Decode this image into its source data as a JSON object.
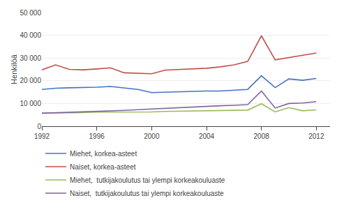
{
  "chart_data": {
    "type": "line",
    "x": [
      1992,
      1993,
      1994,
      1995,
      1996,
      1997,
      1998,
      1999,
      2000,
      2001,
      2002,
      2003,
      2004,
      2005,
      2006,
      2007,
      2008,
      2009,
      2010,
      2011,
      2012
    ],
    "series": [
      {
        "name": "Miehet, korkea-asteet",
        "color": "#4472C4",
        "values": [
          16200,
          16700,
          16900,
          17000,
          17200,
          17500,
          16800,
          16200,
          14800,
          15000,
          15300,
          15300,
          15500,
          15500,
          15800,
          16200,
          22200,
          17000,
          20800,
          20200,
          21000
        ]
      },
      {
        "name": "Naiset, korkea-asteet",
        "color": "#C0504D",
        "values": [
          24800,
          27000,
          25000,
          24800,
          25200,
          25700,
          23500,
          23200,
          23100,
          24700,
          24900,
          25200,
          25500,
          26100,
          27000,
          28500,
          39800,
          29200,
          30200,
          31000,
          32200
        ]
      },
      {
        "name": "Miehet,  tutkijakoulutus tai ylempi korkeakouluaste",
        "color": "#9BBB59",
        "values": [
          5800,
          5800,
          5800,
          6000,
          6200,
          6200,
          6300,
          6300,
          6300,
          6500,
          6600,
          6700,
          6900,
          7100,
          7100,
          7100,
          9900,
          6300,
          8200,
          6800,
          7200
        ]
      },
      {
        "name": "Naiset,  tutkijakoulutus tai ylempi korkeakouluaste",
        "color": "#8064A2",
        "values": [
          5700,
          5900,
          6000,
          6200,
          6500,
          6800,
          7000,
          7300,
          7600,
          8000,
          8200,
          8500,
          8800,
          9000,
          9200,
          9500,
          15500,
          8000,
          10000,
          10200,
          10800
        ]
      }
    ],
    "ylabel": "Henkilöä",
    "xlim": [
      1992,
      2013
    ],
    "xticks": [
      1992,
      1996,
      2000,
      2004,
      2008,
      2012
    ],
    "ylim": [
      0,
      50000
    ],
    "yticks": [
      0,
      {
        "value": 10000,
        "label": "10 000"
      },
      {
        "value": 20000,
        "label": "20 000"
      },
      {
        "value": 30000,
        "label": "30 000"
      },
      {
        "value": 40000,
        "label": "40 000"
      },
      {
        "value": 50000,
        "label": "50 000"
      }
    ],
    "grid": true,
    "legend": "bottom"
  }
}
